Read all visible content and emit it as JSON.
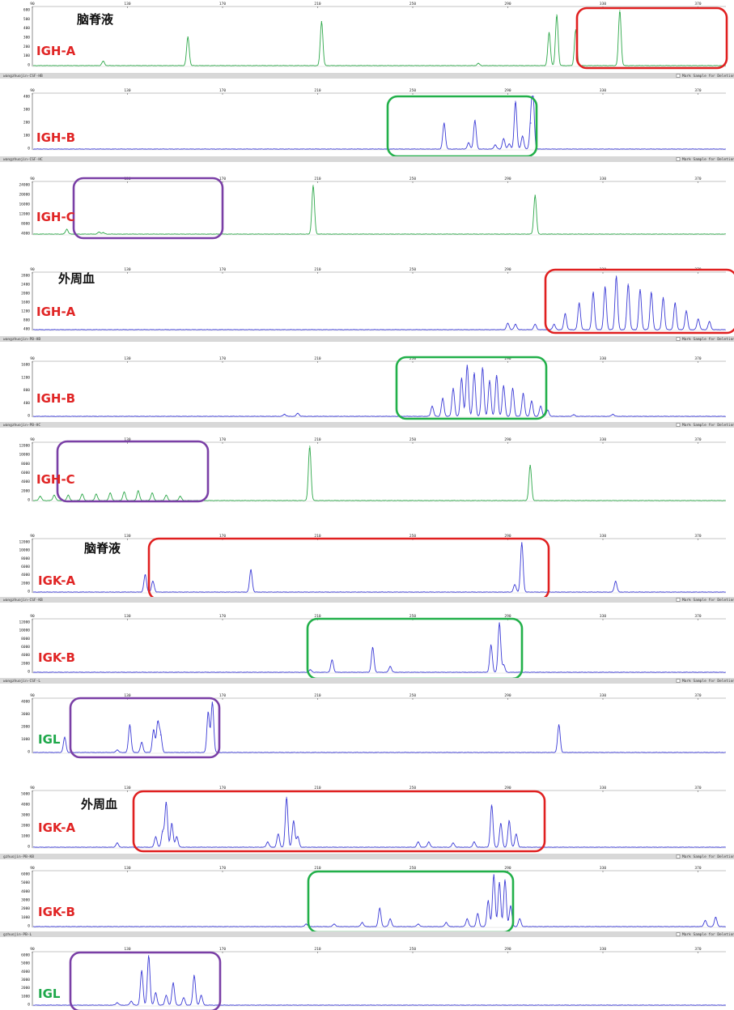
{
  "colors": {
    "red_box": "#e02020",
    "green_box": "#22b04a",
    "purple_box": "#7a3fa6",
    "label_red": "#e02424",
    "label_green": "#1ea84a",
    "blue_trace": "#3b3bd6",
    "green_trace": "#2ea84a",
    "separator_bar": "#d8d8d8"
  },
  "separator_checkbox_label": "Mark Sample for Deletion",
  "chart_data": [
    {
      "id": "p1",
      "type": "line",
      "title": "脑脊液",
      "label": "IGH-A",
      "label_color": "red",
      "trace": "green",
      "box": "red",
      "xticks": [
        "90",
        "130",
        "170",
        "210",
        "250",
        "290",
        "330",
        "370"
      ],
      "yticks": [
        "600",
        "500",
        "400",
        "300",
        "200",
        "100",
        "0"
      ],
      "separator_text": "wangzhuojin-CSF-HB",
      "peaks": [
        {
          "x": 1,
          "h": 0.08
        },
        {
          "x": 2.21,
          "h": 0.52
        },
        {
          "x": 4.12,
          "h": 0.8
        },
        {
          "x": 6.36,
          "h": 0.04
        },
        {
          "x": 7.37,
          "h": 0.6
        },
        {
          "x": 7.48,
          "h": 0.92
        },
        {
          "x": 7.75,
          "h": 0.65
        },
        {
          "x": 8.38,
          "h": 1.0
        }
      ]
    },
    {
      "id": "p2",
      "type": "line",
      "title": "",
      "label": "IGH-B",
      "label_color": "red",
      "trace": "blue",
      "box": "green",
      "xticks": [
        "90",
        "130",
        "170",
        "210",
        "250",
        "290",
        "330",
        "370"
      ],
      "yticks": [
        "400",
        "300",
        "200",
        "100",
        "0"
      ],
      "separator_text": "wangzhuojin-CSF-HC",
      "peaks": [
        {
          "x": 5.87,
          "h": 0.5
        },
        {
          "x": 6.22,
          "h": 0.12
        },
        {
          "x": 6.31,
          "h": 0.55
        },
        {
          "x": 6.6,
          "h": 0.08
        },
        {
          "x": 6.72,
          "h": 0.2
        },
        {
          "x": 6.8,
          "h": 0.1
        },
        {
          "x": 6.89,
          "h": 0.92
        },
        {
          "x": 6.99,
          "h": 0.25
        },
        {
          "x": 7.11,
          "h": 0.5
        },
        {
          "x": 7.14,
          "h": 1.0
        }
      ]
    },
    {
      "id": "p3",
      "type": "line",
      "title": "",
      "label": "IGH-C",
      "label_color": "red",
      "trace": "green",
      "box": "purple",
      "xticks": [
        "90",
        "130",
        "170",
        "210",
        "250",
        "290",
        "330",
        "370"
      ],
      "yticks": [
        "24000",
        "20000",
        "16000",
        "12000",
        "8000",
        "4000"
      ],
      "separator_text": "",
      "peaks": [
        {
          "x": 0.48,
          "h": 0.1
        },
        {
          "x": 0.94,
          "h": 0.04
        },
        {
          "x": 1.0,
          "h": 0.03
        },
        {
          "x": 4.0,
          "h": 1.0
        },
        {
          "x": 7.17,
          "h": 0.8
        }
      ]
    },
    {
      "id": "p4",
      "type": "line",
      "title": "外周血",
      "label": "IGH-A",
      "label_color": "red",
      "trace": "blue",
      "box": "red",
      "xticks": [
        "90",
        "130",
        "170",
        "210",
        "250",
        "290",
        "330",
        "370"
      ],
      "yticks": [
        "2800",
        "2400",
        "2000",
        "1600",
        "1200",
        "800",
        "400"
      ],
      "separator_text": "wangzhuojin-PB-HB",
      "peaks": [
        {
          "x": 6.78,
          "h": 0.12
        },
        {
          "x": 6.89,
          "h": 0.1
        },
        {
          "x": 7.17,
          "h": 0.1
        },
        {
          "x": 7.44,
          "h": 0.1
        },
        {
          "x": 7.6,
          "h": 0.3
        },
        {
          "x": 7.8,
          "h": 0.5
        },
        {
          "x": 8.0,
          "h": 0.7
        },
        {
          "x": 8.17,
          "h": 0.8
        },
        {
          "x": 8.33,
          "h": 1.0
        },
        {
          "x": 8.5,
          "h": 0.85
        },
        {
          "x": 8.67,
          "h": 0.75
        },
        {
          "x": 8.83,
          "h": 0.7
        },
        {
          "x": 9.0,
          "h": 0.6
        },
        {
          "x": 9.17,
          "h": 0.5
        },
        {
          "x": 9.33,
          "h": 0.35
        },
        {
          "x": 9.5,
          "h": 0.2
        },
        {
          "x": 9.66,
          "h": 0.15
        }
      ]
    },
    {
      "id": "p5",
      "type": "line",
      "title": "",
      "label": "IGH-B",
      "label_color": "red",
      "trace": "blue",
      "box": "green",
      "xticks": [
        "90",
        "130",
        "170",
        "210",
        "250",
        "290",
        "330",
        "370"
      ],
      "yticks": [
        "1600",
        "1200",
        "800",
        "400",
        "0"
      ],
      "separator_text": "wangzhuojin-PB-HC",
      "peaks": [
        {
          "x": 3.59,
          "h": 0.04
        },
        {
          "x": 3.78,
          "h": 0.06
        },
        {
          "x": 5.7,
          "h": 0.2
        },
        {
          "x": 5.85,
          "h": 0.35
        },
        {
          "x": 6.0,
          "h": 0.55
        },
        {
          "x": 6.12,
          "h": 0.75
        },
        {
          "x": 6.2,
          "h": 1.0
        },
        {
          "x": 6.3,
          "h": 0.85
        },
        {
          "x": 6.42,
          "h": 0.95
        },
        {
          "x": 6.52,
          "h": 0.7
        },
        {
          "x": 6.62,
          "h": 0.8
        },
        {
          "x": 6.72,
          "h": 0.6
        },
        {
          "x": 6.85,
          "h": 0.55
        },
        {
          "x": 7.0,
          "h": 0.45
        },
        {
          "x": 7.12,
          "h": 0.3
        },
        {
          "x": 7.25,
          "h": 0.2
        },
        {
          "x": 7.35,
          "h": 0.12
        },
        {
          "x": 7.72,
          "h": 0.03
        },
        {
          "x": 8.28,
          "h": 0.04
        }
      ]
    },
    {
      "id": "p6",
      "type": "line",
      "title": "",
      "label": "IGH-C",
      "label_color": "red",
      "trace": "green",
      "box": "purple",
      "xticks": [
        "90",
        "130",
        "170",
        "210",
        "250",
        "290",
        "330",
        "370"
      ],
      "yticks": [
        "12000",
        "10000",
        "8000",
        "6000",
        "4000",
        "2000",
        "0"
      ],
      "separator_text": "",
      "peaks": [
        {
          "x": 0.1,
          "h": 0.08
        },
        {
          "x": 0.3,
          "h": 0.1
        },
        {
          "x": 0.5,
          "h": 0.1
        },
        {
          "x": 0.7,
          "h": 0.12
        },
        {
          "x": 0.9,
          "h": 0.12
        },
        {
          "x": 1.1,
          "h": 0.14
        },
        {
          "x": 1.3,
          "h": 0.16
        },
        {
          "x": 1.5,
          "h": 0.18
        },
        {
          "x": 1.7,
          "h": 0.14
        },
        {
          "x": 1.9,
          "h": 0.1
        },
        {
          "x": 2.1,
          "h": 0.08
        },
        {
          "x": 3.95,
          "h": 1.0
        },
        {
          "x": 7.1,
          "h": 0.65
        }
      ]
    },
    {
      "id": "p7",
      "type": "line",
      "title": "脑脊液",
      "label": "IGK-A",
      "label_color": "red",
      "trace": "blue",
      "box": "red",
      "xticks": [
        "90",
        "130",
        "170",
        "210",
        "250",
        "290",
        "330",
        "370"
      ],
      "yticks": [
        "12000",
        "10000",
        "8000",
        "6000",
        "4000",
        "2000",
        "0"
      ],
      "separator_text": "wangzhuojin-CSF-KB",
      "peaks": [
        {
          "x": 1.6,
          "h": 0.35
        },
        {
          "x": 1.71,
          "h": 0.22
        },
        {
          "x": 3.11,
          "h": 0.45
        },
        {
          "x": 6.88,
          "h": 0.15
        },
        {
          "x": 6.98,
          "h": 1.0
        },
        {
          "x": 8.32,
          "h": 0.22
        }
      ]
    },
    {
      "id": "p8",
      "type": "line",
      "title": "",
      "label": "IGK-B",
      "label_color": "red",
      "trace": "blue",
      "box": "green",
      "xticks": [
        "90",
        "130",
        "170",
        "210",
        "250",
        "290",
        "330",
        "370"
      ],
      "yticks": [
        "12000",
        "10000",
        "8000",
        "6000",
        "4000",
        "2000",
        "0"
      ],
      "separator_text": "wangzhuojin-CSF-L",
      "peaks": [
        {
          "x": 3.96,
          "h": 0.05
        },
        {
          "x": 4.27,
          "h": 0.25
        },
        {
          "x": 4.85,
          "h": 0.5
        },
        {
          "x": 5.1,
          "h": 0.12
        },
        {
          "x": 6.54,
          "h": 0.55
        },
        {
          "x": 6.66,
          "h": 1.0
        },
        {
          "x": 6.72,
          "h": 0.15
        }
      ]
    },
    {
      "id": "p9",
      "type": "line",
      "title": "",
      "label": "IGL",
      "label_color": "green",
      "trace": "blue",
      "box": "purple",
      "xticks": [
        "90",
        "130",
        "170",
        "210",
        "250",
        "290",
        "330",
        "370"
      ],
      "yticks": [
        "4000",
        "3000",
        "2000",
        "1000",
        "0"
      ],
      "separator_text": "",
      "peaks": [
        {
          "x": 0.45,
          "h": 0.3
        },
        {
          "x": 1.2,
          "h": 0.05
        },
        {
          "x": 1.38,
          "h": 0.55
        },
        {
          "x": 1.55,
          "h": 0.2
        },
        {
          "x": 1.72,
          "h": 0.45
        },
        {
          "x": 1.78,
          "h": 0.6
        },
        {
          "x": 1.82,
          "h": 0.35
        },
        {
          "x": 2.5,
          "h": 0.8
        },
        {
          "x": 2.56,
          "h": 1.0
        },
        {
          "x": 7.51,
          "h": 0.55
        }
      ]
    },
    {
      "id": "p10",
      "type": "line",
      "title": "外周血",
      "label": "IGK-A",
      "label_color": "red",
      "trace": "blue",
      "box": "red",
      "xticks": [
        "90",
        "130",
        "170",
        "210",
        "250",
        "290",
        "330",
        "370"
      ],
      "yticks": [
        "5000",
        "4000",
        "3000",
        "2000",
        "1000",
        "0"
      ],
      "separator_text": "gzhuojin-PB-KB",
      "peaks": [
        {
          "x": 1.2,
          "h": 0.08
        },
        {
          "x": 1.75,
          "h": 0.2
        },
        {
          "x": 1.85,
          "h": 0.3
        },
        {
          "x": 1.9,
          "h": 0.85
        },
        {
          "x": 1.98,
          "h": 0.45
        },
        {
          "x": 2.05,
          "h": 0.2
        },
        {
          "x": 3.35,
          "h": 0.1
        },
        {
          "x": 3.5,
          "h": 0.25
        },
        {
          "x": 3.62,
          "h": 0.95
        },
        {
          "x": 3.72,
          "h": 0.5
        },
        {
          "x": 3.78,
          "h": 0.2
        },
        {
          "x": 5.5,
          "h": 0.1
        },
        {
          "x": 5.65,
          "h": 0.1
        },
        {
          "x": 6.0,
          "h": 0.08
        },
        {
          "x": 6.3,
          "h": 0.1
        },
        {
          "x": 6.55,
          "h": 0.8
        },
        {
          "x": 6.68,
          "h": 0.45
        },
        {
          "x": 6.8,
          "h": 0.5
        },
        {
          "x": 6.9,
          "h": 0.25
        }
      ]
    },
    {
      "id": "p11",
      "type": "line",
      "title": "",
      "label": "IGK-B",
      "label_color": "red",
      "trace": "blue",
      "box": "green",
      "xticks": [
        "90",
        "130",
        "170",
        "210",
        "250",
        "290",
        "330",
        "370"
      ],
      "yticks": [
        "6000",
        "5000",
        "4000",
        "3000",
        "2000",
        "1000",
        "0"
      ],
      "separator_text": "gzhuojin-PB-L",
      "peaks": [
        {
          "x": 3.9,
          "h": 0.05
        },
        {
          "x": 4.3,
          "h": 0.05
        },
        {
          "x": 4.7,
          "h": 0.08
        },
        {
          "x": 4.95,
          "h": 0.35
        },
        {
          "x": 5.1,
          "h": 0.15
        },
        {
          "x": 5.5,
          "h": 0.05
        },
        {
          "x": 5.9,
          "h": 0.08
        },
        {
          "x": 6.2,
          "h": 0.15
        },
        {
          "x": 6.35,
          "h": 0.25
        },
        {
          "x": 6.5,
          "h": 0.5
        },
        {
          "x": 6.58,
          "h": 1.0
        },
        {
          "x": 6.66,
          "h": 0.85
        },
        {
          "x": 6.74,
          "h": 0.9
        },
        {
          "x": 6.82,
          "h": 0.4
        },
        {
          "x": 6.95,
          "h": 0.15
        },
        {
          "x": 9.6,
          "h": 0.12
        },
        {
          "x": 9.75,
          "h": 0.18
        }
      ]
    },
    {
      "id": "p12",
      "type": "line",
      "title": "",
      "label": "IGL",
      "label_color": "green",
      "trace": "blue",
      "box": "purple",
      "xticks": [
        "90",
        "130",
        "170",
        "210",
        "250",
        "290",
        "330",
        "370"
      ],
      "yticks": [
        "6000",
        "5000",
        "4000",
        "3000",
        "2000",
        "1000",
        "0"
      ],
      "separator_text": "",
      "peaks": [
        {
          "x": 1.2,
          "h": 0.05
        },
        {
          "x": 1.4,
          "h": 0.08
        },
        {
          "x": 1.55,
          "h": 0.7
        },
        {
          "x": 1.65,
          "h": 1.0
        },
        {
          "x": 1.75,
          "h": 0.25
        },
        {
          "x": 1.9,
          "h": 0.2
        },
        {
          "x": 2.0,
          "h": 0.45
        },
        {
          "x": 2.15,
          "h": 0.15
        },
        {
          "x": 2.3,
          "h": 0.6
        },
        {
          "x": 2.4,
          "h": 0.2
        }
      ]
    }
  ]
}
